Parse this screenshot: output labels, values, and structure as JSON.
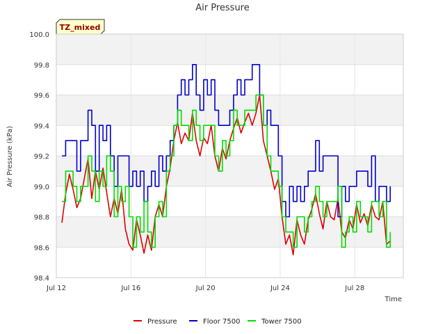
{
  "chart_data": {
    "type": "line",
    "title": "Air Pressure",
    "xlabel": "Time",
    "ylabel": "Air Pressure (kPa)",
    "badge": "TZ_mixed",
    "ylim": [
      98.4,
      100.0
    ],
    "yticks": [
      98.4,
      98.6,
      98.8,
      99.0,
      99.2,
      99.4,
      99.6,
      99.8,
      100.0
    ],
    "ytick_labels": [
      "98.4",
      "98.6",
      "98.8",
      "99.0",
      "99.2",
      "99.4",
      "99.6",
      "99.8",
      "100.0"
    ],
    "xlim": [
      12,
      30.6
    ],
    "xticks": [
      12,
      16,
      20,
      24,
      28
    ],
    "xtick_labels": [
      "Jul 12",
      "Jul 16",
      "Jul 20",
      "Jul 24",
      "Jul 28"
    ],
    "series": [
      {
        "name": "Pressure",
        "color": "#dd0000",
        "x": [
          12.3,
          12.5,
          12.7,
          12.9,
          13.1,
          13.3,
          13.5,
          13.7,
          13.9,
          14.1,
          14.3,
          14.5,
          14.7,
          14.9,
          15.1,
          15.3,
          15.5,
          15.7,
          15.9,
          16.1,
          16.3,
          16.5,
          16.7,
          16.9,
          17.1,
          17.3,
          17.5,
          17.7,
          17.9,
          18.1,
          18.3,
          18.5,
          18.7,
          18.9,
          19.1,
          19.3,
          19.5,
          19.7,
          19.9,
          20.1,
          20.3,
          20.5,
          20.7,
          20.9,
          21.1,
          21.3,
          21.5,
          21.7,
          21.9,
          22.1,
          22.3,
          22.5,
          22.7,
          22.9,
          23.1,
          23.3,
          23.5,
          23.7,
          23.9,
          24.1,
          24.3,
          24.5,
          24.7,
          24.9,
          25.1,
          25.3,
          25.5,
          25.7,
          25.9,
          26.1,
          26.3,
          26.5,
          26.7,
          26.9,
          27.1,
          27.3,
          27.5,
          27.7,
          27.9,
          28.1,
          28.3,
          28.5,
          28.7,
          28.9,
          29.1,
          29.3,
          29.5,
          29.7,
          29.9
        ],
        "values": [
          98.76,
          98.95,
          99.08,
          98.98,
          98.86,
          98.92,
          99.05,
          99.18,
          98.92,
          99.1,
          98.98,
          99.12,
          98.96,
          98.8,
          98.92,
          98.82,
          98.98,
          98.72,
          98.62,
          98.58,
          98.78,
          98.68,
          98.56,
          98.68,
          98.58,
          98.8,
          98.88,
          98.8,
          99.0,
          99.12,
          99.3,
          99.42,
          99.28,
          99.35,
          99.3,
          99.48,
          99.3,
          99.2,
          99.32,
          99.28,
          99.4,
          99.2,
          99.1,
          99.25,
          99.18,
          99.3,
          99.38,
          99.45,
          99.35,
          99.42,
          99.48,
          99.4,
          99.48,
          99.6,
          99.3,
          99.2,
          99.1,
          98.98,
          99.05,
          98.8,
          98.62,
          98.68,
          98.55,
          98.78,
          98.68,
          98.62,
          98.78,
          98.85,
          98.95,
          98.82,
          98.72,
          98.9,
          98.8,
          98.78,
          98.92,
          98.7,
          98.66,
          98.78,
          98.72,
          98.88,
          98.76,
          98.82,
          98.74,
          98.88,
          98.8,
          98.78,
          98.9,
          98.62,
          98.64
        ]
      },
      {
        "name": "Floor 7500",
        "color": "#0000cc",
        "x": [
          12.3,
          12.5,
          12.7,
          12.9,
          13.1,
          13.3,
          13.5,
          13.7,
          13.9,
          14.1,
          14.3,
          14.5,
          14.7,
          14.9,
          15.1,
          15.3,
          15.5,
          15.7,
          15.9,
          16.1,
          16.3,
          16.5,
          16.7,
          16.9,
          17.1,
          17.3,
          17.5,
          17.7,
          17.9,
          18.1,
          18.3,
          18.5,
          18.7,
          18.9,
          19.1,
          19.3,
          19.5,
          19.7,
          19.9,
          20.1,
          20.3,
          20.5,
          20.7,
          20.9,
          21.1,
          21.3,
          21.5,
          21.7,
          21.9,
          22.1,
          22.3,
          22.5,
          22.7,
          22.9,
          23.1,
          23.3,
          23.5,
          23.7,
          23.9,
          24.1,
          24.3,
          24.5,
          24.7,
          24.9,
          25.1,
          25.3,
          25.5,
          25.7,
          25.9,
          26.1,
          26.3,
          26.5,
          26.7,
          26.9,
          27.1,
          27.3,
          27.5,
          27.7,
          27.9,
          28.1,
          28.3,
          28.5,
          28.7,
          28.9,
          29.1,
          29.3,
          29.5,
          29.7,
          29.9
        ],
        "values": [
          99.2,
          99.3,
          99.3,
          99.3,
          99.1,
          99.3,
          99.3,
          99.5,
          99.4,
          99.1,
          99.4,
          99.3,
          99.4,
          99.2,
          99.0,
          99.2,
          99.2,
          99.2,
          99.0,
          99.1,
          99.0,
          99.1,
          98.9,
          99.0,
          99.1,
          99.0,
          99.2,
          99.1,
          99.2,
          99.3,
          99.4,
          99.6,
          99.7,
          99.6,
          99.7,
          99.8,
          99.6,
          99.5,
          99.7,
          99.6,
          99.7,
          99.5,
          99.4,
          99.4,
          99.4,
          99.5,
          99.6,
          99.7,
          99.6,
          99.7,
          99.7,
          99.8,
          99.8,
          99.6,
          99.4,
          99.5,
          99.4,
          99.4,
          99.2,
          98.9,
          98.8,
          99.0,
          98.9,
          99.0,
          98.9,
          99.0,
          99.1,
          99.1,
          99.3,
          99.1,
          99.2,
          99.2,
          99.2,
          99.2,
          98.8,
          99.0,
          98.9,
          99.0,
          99.0,
          99.1,
          99.1,
          99.1,
          99.0,
          99.2,
          98.9,
          99.0,
          99.0,
          98.9,
          99.0
        ]
      },
      {
        "name": "Tower 7500",
        "color": "#00dd00",
        "x": [
          12.3,
          12.5,
          12.7,
          12.9,
          13.1,
          13.3,
          13.5,
          13.7,
          13.9,
          14.1,
          14.3,
          14.5,
          14.7,
          14.9,
          15.1,
          15.3,
          15.5,
          15.7,
          15.9,
          16.1,
          16.3,
          16.5,
          16.7,
          16.9,
          17.1,
          17.3,
          17.5,
          17.7,
          17.9,
          18.1,
          18.3,
          18.5,
          18.7,
          18.9,
          19.1,
          19.3,
          19.5,
          19.7,
          19.9,
          20.1,
          20.3,
          20.5,
          20.7,
          20.9,
          21.1,
          21.3,
          21.5,
          21.7,
          21.9,
          22.1,
          22.3,
          22.5,
          22.7,
          22.9,
          23.1,
          23.3,
          23.5,
          23.7,
          23.9,
          24.1,
          24.3,
          24.5,
          24.7,
          24.9,
          25.1,
          25.3,
          25.5,
          25.7,
          25.9,
          26.1,
          26.3,
          26.5,
          26.7,
          26.9,
          27.1,
          27.3,
          27.5,
          27.7,
          27.9,
          28.1,
          28.3,
          28.5,
          28.7,
          28.9,
          29.1,
          29.3,
          29.5,
          29.7,
          29.9
        ],
        "values": [
          98.9,
          99.1,
          99.1,
          99.0,
          98.9,
          99.0,
          99.0,
          99.2,
          99.1,
          98.9,
          99.1,
          99.0,
          99.2,
          99.1,
          98.8,
          99.0,
          98.9,
          99.0,
          98.8,
          98.6,
          98.8,
          98.7,
          98.9,
          98.7,
          98.6,
          98.8,
          98.9,
          98.8,
          99.1,
          99.2,
          99.4,
          99.5,
          99.4,
          99.4,
          99.3,
          99.5,
          99.4,
          99.3,
          99.4,
          99.4,
          99.4,
          99.2,
          99.1,
          99.3,
          99.2,
          99.3,
          99.5,
          99.4,
          99.4,
          99.5,
          99.5,
          99.5,
          99.6,
          99.6,
          99.4,
          99.2,
          99.1,
          99.1,
          99.0,
          98.8,
          98.7,
          98.7,
          98.6,
          98.8,
          98.8,
          98.7,
          98.8,
          98.9,
          99.0,
          98.9,
          98.8,
          98.9,
          98.9,
          98.9,
          99.0,
          98.6,
          98.7,
          98.8,
          98.7,
          98.9,
          98.8,
          98.8,
          98.7,
          98.9,
          98.9,
          98.8,
          98.9,
          98.6,
          98.7
        ]
      }
    ]
  }
}
